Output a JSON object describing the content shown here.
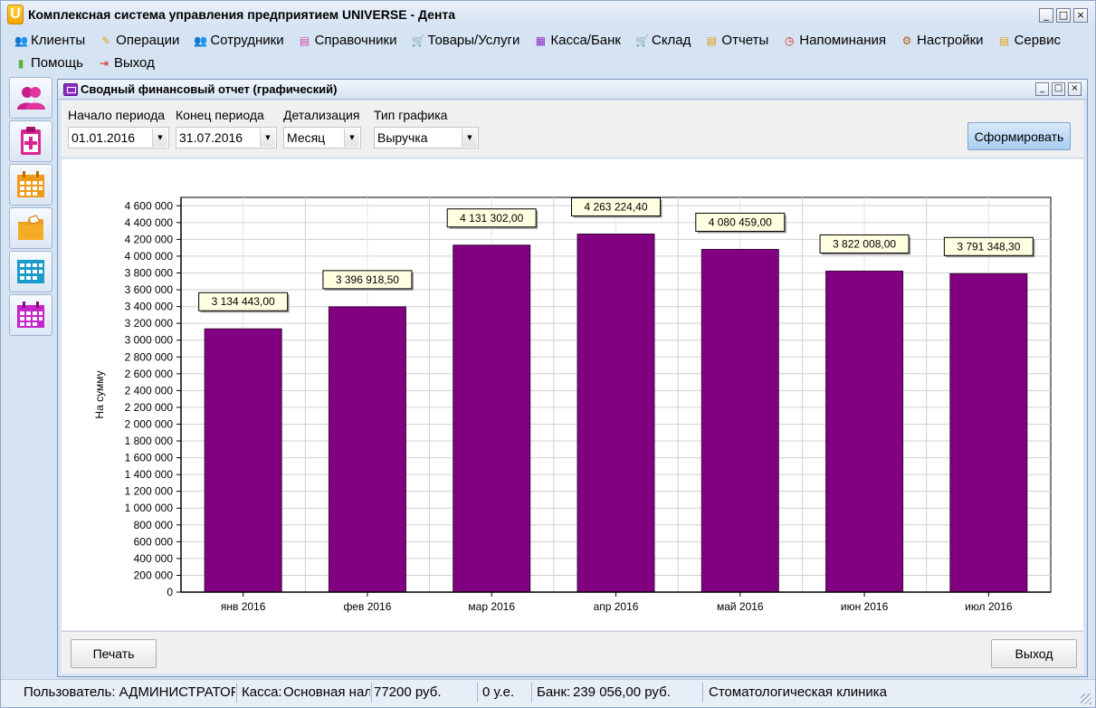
{
  "app": {
    "title": "Комплексная система управления предприятием UNIVERSE - Дента",
    "logo_letter": "U"
  },
  "window_controls": {
    "minimize": "_",
    "maximize": "□",
    "close": "×"
  },
  "menu": [
    {
      "label": "Клиенты",
      "icon": "clients-icon",
      "glyph": "👥",
      "color": "#cc2f8c"
    },
    {
      "label": "Операции",
      "icon": "operations-icon",
      "glyph": "✎",
      "color": "#e8a21f"
    },
    {
      "label": "Сотрудники",
      "icon": "employees-icon",
      "glyph": "👥",
      "color": "#3a7cc9"
    },
    {
      "label": "Справочники",
      "icon": "directories-icon",
      "glyph": "▤",
      "color": "#d84aa8"
    },
    {
      "label": "Товары/Услуги",
      "icon": "goods-icon",
      "glyph": "🛒",
      "color": "#2a9a6a"
    },
    {
      "label": "Касса/Банк",
      "icon": "cash-icon",
      "glyph": "▦",
      "color": "#8d2fc2"
    },
    {
      "label": "Склад",
      "icon": "warehouse-icon",
      "glyph": "🛒",
      "color": "#3c9b2e"
    },
    {
      "label": "Отчеты",
      "icon": "reports-icon",
      "glyph": "▤",
      "color": "#e39c12"
    },
    {
      "label": "Напоминания",
      "icon": "reminders-icon",
      "glyph": "◷",
      "color": "#d0261c"
    },
    {
      "label": "Настройки",
      "icon": "settings-icon",
      "glyph": "⚙",
      "color": "#b0641c"
    },
    {
      "label": "Сервис",
      "icon": "service-icon",
      "glyph": "▤",
      "color": "#e6a11c"
    },
    {
      "label": "Помощь",
      "icon": "help-icon",
      "glyph": "▮",
      "color": "#56b13b"
    },
    {
      "label": "Выход",
      "icon": "exit-icon",
      "glyph": "⇥",
      "color": "#d0261c"
    }
  ],
  "sidebar": [
    {
      "name": "clients-shortcut",
      "icon": "people-icon"
    },
    {
      "name": "medical-card-shortcut",
      "icon": "medical-card-icon"
    },
    {
      "name": "schedule-shortcut",
      "icon": "calendar-grid-icon"
    },
    {
      "name": "cash-register-shortcut",
      "icon": "folder-icon"
    },
    {
      "name": "table-shortcut",
      "icon": "table-icon"
    },
    {
      "name": "calendar-shortcut",
      "icon": "calendar-icon"
    }
  ],
  "report": {
    "title": "Сводный финансовый отчет (графический)",
    "filters": {
      "start_label": "Начало периода",
      "start_value": "01.01.2016",
      "end_label": "Конец периода",
      "end_value": "31.07.2016",
      "detail_label": "Детализация",
      "detail_value": "Месяц",
      "chart_type_label": "Тип графика",
      "chart_type_value": "Выручка"
    },
    "generate_button": "Сформировать",
    "print_button": "Печать",
    "exit_button": "Выход"
  },
  "chart_data": {
    "type": "bar",
    "categories": [
      "янв 2016",
      "фев 2016",
      "мар 2016",
      "апр 2016",
      "май 2016",
      "июн 2016",
      "июл 2016"
    ],
    "values": [
      3134443.0,
      3396918.5,
      4131302.0,
      4263224.4,
      4080459.0,
      3822008.0,
      3791348.3
    ],
    "data_labels": [
      "3 134 443,00",
      "3 396 918,50",
      "4 131 302,00",
      "4 263 224,40",
      "4 080 459,00",
      "3 822 008,00",
      "3 791 348,30"
    ],
    "ylabel": "На сумму",
    "xlabel": "",
    "title": "",
    "ylim": [
      0,
      4700000
    ],
    "ytick_step": 200000,
    "ytick_labels": [
      "0",
      "200 000",
      "400 000",
      "600 000",
      "800 000",
      "1 000 000",
      "1 200 000",
      "1 400 000",
      "1 600 000",
      "1 800 000",
      "2 000 000",
      "2 200 000",
      "2 400 000",
      "2 600 000",
      "2 800 000",
      "3 000 000",
      "3 200 000",
      "3 400 000",
      "3 600 000",
      "3 800 000",
      "4 000 000",
      "4 200 000",
      "4 400 000",
      "4 600 000"
    ],
    "bar_color": "#800080",
    "grid": true,
    "legend": false
  },
  "status": {
    "user": "Пользователь: АДМИНИСТРАТОР",
    "cash_label": "Касса:",
    "cash_name": "Основная нал",
    "cash_amount": "77200 руб.",
    "currency": "0 у.е.",
    "bank_label": "Банк:",
    "bank_amount": "239 056,00 руб.",
    "org": "Стоматологическая клиника"
  }
}
